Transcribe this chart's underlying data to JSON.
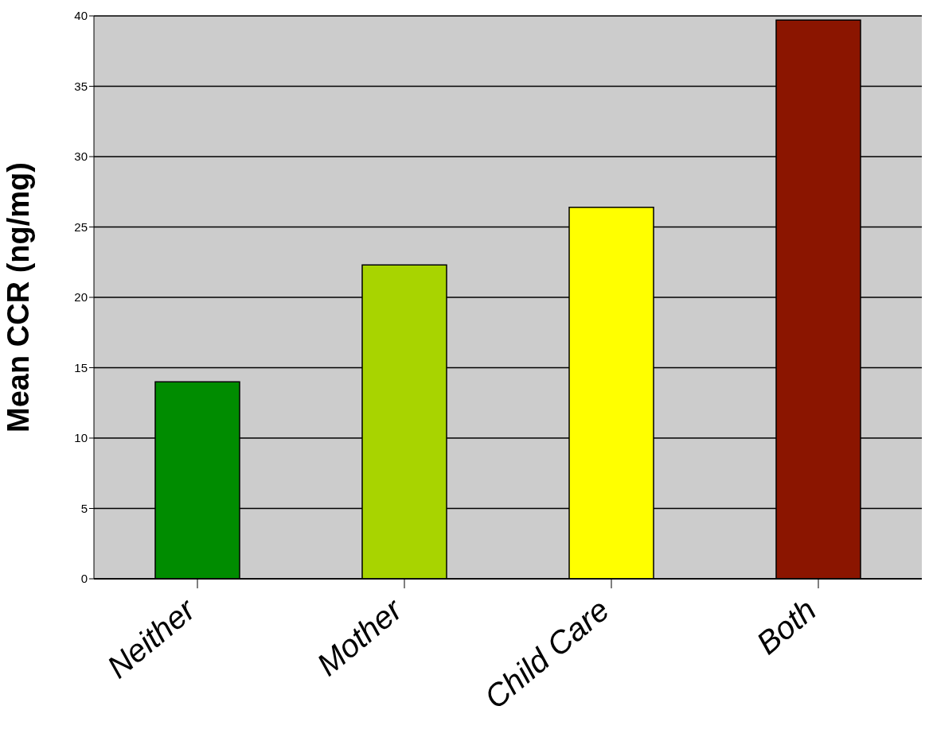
{
  "chart_data": {
    "type": "bar",
    "ylabel": "Mean CCR (ng/mg)",
    "categories": [
      "Neither",
      "Mother",
      "Child Care",
      "Both"
    ],
    "values": [
      14,
      22.3,
      26.4,
      39.7
    ],
    "colors": [
      "#008c00",
      "#a8d400",
      "#ffff00",
      "#8b1500"
    ],
    "ylim": [
      0,
      40
    ],
    "yticks": [
      0,
      5,
      10,
      15,
      20,
      25,
      30,
      35,
      40
    ],
    "grid": "y",
    "legend": false
  }
}
